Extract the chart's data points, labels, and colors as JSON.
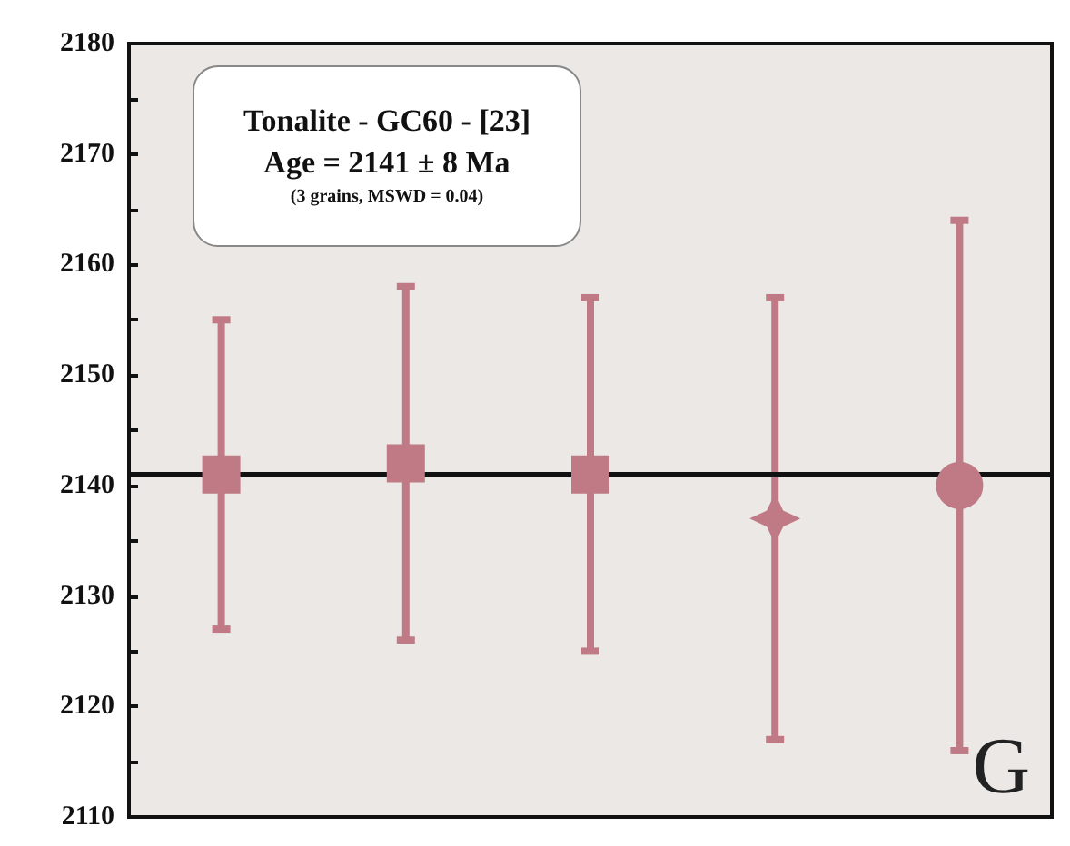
{
  "chart_data": {
    "type": "scatter",
    "categories": [
      null,
      null,
      null,
      null,
      null
    ],
    "series": [
      {
        "marker": "square",
        "color": "#c07a86",
        "values": [
          2141,
          2142,
          2141,
          null,
          null
        ],
        "errors": [
          [
            2127,
            2155
          ],
          [
            2126,
            2158
          ],
          [
            2125,
            2157
          ],
          null,
          null
        ]
      },
      {
        "marker": "star",
        "color": "#c07a86",
        "values": [
          null,
          null,
          null,
          2137,
          null
        ],
        "errors": [
          null,
          null,
          null,
          [
            2117,
            2157
          ],
          null
        ]
      },
      {
        "marker": "circle",
        "color": "#c07a86",
        "values": [
          null,
          null,
          null,
          null,
          2140
        ],
        "errors": [
          null,
          null,
          null,
          null,
          [
            2116,
            2164
          ]
        ]
      }
    ],
    "ylim": [
      2110,
      2180
    ],
    "yticks": [
      2110,
      {
        "value": 2115,
        "label": null
      },
      2120,
      {
        "value": 2125,
        "label": null
      },
      2130,
      {
        "value": 2135,
        "label": null
      },
      2140,
      {
        "value": 2145,
        "label": null
      },
      2150,
      {
        "value": 2155,
        "label": null
      },
      2160,
      {
        "value": 2165,
        "label": null
      },
      2170,
      {
        "value": 2175,
        "label": null
      },
      2180
    ],
    "ref_lines": [
      {
        "axis": "y",
        "value": 2141,
        "label": null,
        "color": "#111111",
        "line_style": "solid"
      }
    ],
    "annotations": [
      "Tonalite - GC60 - [23]",
      "Age = 2141 ± 8 Ma",
      "(3 grains, MSWD = 0.04)",
      "G"
    ],
    "grid": false
  }
}
